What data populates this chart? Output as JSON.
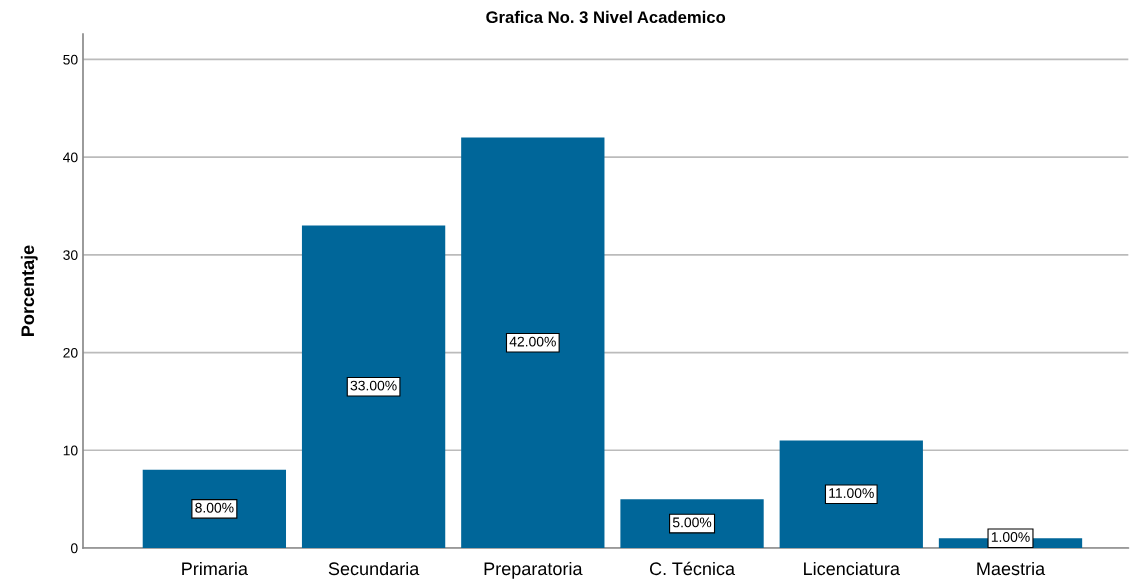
{
  "chart_data": {
    "type": "bar",
    "title": "Grafica No. 3 Nivel Academico",
    "ylabel": "Porcentaje",
    "categories": [
      "Primaria",
      "Secundaria",
      "Preparatoria",
      "C. Técnica",
      "Licenciatura",
      "Maestria"
    ],
    "values": [
      8,
      33,
      42,
      5,
      11,
      1
    ],
    "value_labels": [
      "8.00%",
      "33.00%",
      "42.00%",
      "5.00%",
      "11.00%",
      "1.00%"
    ],
    "color": "#006699",
    "ylim": [
      0,
      52.6
    ],
    "yticks": [
      0,
      10,
      20,
      30,
      40,
      50
    ],
    "grid": "y",
    "legend": false
  }
}
